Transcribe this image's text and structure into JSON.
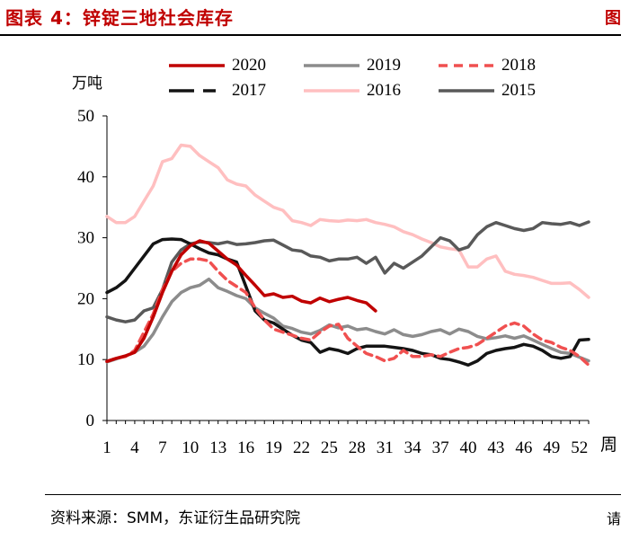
{
  "header": {
    "title": "图表 4：锌锭三地社会库存"
  },
  "footer": {
    "source": "资料来源：SMM，东证衍生品研究院"
  },
  "chart_data": {
    "type": "line",
    "ylabel": "万吨",
    "xlabel": "周",
    "ylim": [
      0,
      50
    ],
    "xlim": [
      1,
      53
    ],
    "y_ticks": [
      0,
      10,
      20,
      30,
      40,
      50
    ],
    "x_ticks": [
      1,
      4,
      7,
      10,
      13,
      16,
      19,
      22,
      25,
      28,
      31,
      34,
      37,
      40,
      43,
      46,
      49,
      52
    ],
    "legend_position": "top",
    "series": [
      {
        "name": "2020",
        "color": "#c00000",
        "dash": "solid",
        "width": 3.5,
        "x": [
          1,
          2,
          3,
          4,
          5,
          6,
          7,
          8,
          9,
          10,
          11,
          12,
          13,
          14,
          15,
          16,
          17,
          18,
          19,
          20,
          21,
          22,
          23,
          24,
          25,
          26,
          27,
          28,
          29,
          30
        ],
        "y": [
          9.7,
          10.2,
          10.6,
          11.2,
          13.5,
          17,
          21,
          24.5,
          27.2,
          28.7,
          29.5,
          29.1,
          27.8,
          26.5,
          25.5,
          23.8,
          22.2,
          20.5,
          20.8,
          20.2,
          20.4,
          19.6,
          19.3,
          20.1,
          19.5,
          19.9,
          20.2,
          19.7,
          19.3,
          18
        ]
      },
      {
        "name": "2019",
        "color": "#8c8c8c",
        "dash": "solid",
        "width": 3.5,
        "x": [
          1,
          2,
          3,
          4,
          5,
          6,
          7,
          8,
          9,
          10,
          11,
          12,
          13,
          14,
          15,
          16,
          17,
          18,
          19,
          20,
          21,
          22,
          23,
          24,
          25,
          26,
          27,
          28,
          29,
          30,
          31,
          32,
          33,
          34,
          35,
          36,
          37,
          38,
          39,
          40,
          41,
          42,
          43,
          44,
          45,
          46,
          47,
          48,
          49,
          50,
          51,
          52,
          53
        ],
        "y": [
          9.6,
          10.1,
          10.6,
          11.2,
          12.2,
          14.2,
          17,
          19.5,
          21,
          21.8,
          22.2,
          23.2,
          21.8,
          21.2,
          20.5,
          20,
          18.5,
          17.6,
          16.8,
          15.5,
          15.1,
          14.5,
          14.2,
          14.8,
          15.7,
          15.2,
          15.5,
          14.9,
          15.1,
          14.6,
          14.2,
          14.9,
          14.1,
          13.8,
          14.1,
          14.6,
          14.9,
          14.2,
          15,
          14.6,
          13.8,
          13.4,
          13.6,
          13.9,
          13.5,
          13.9,
          13.2,
          12.5,
          11.8,
          11.2,
          11,
          10.4,
          9.8
        ]
      },
      {
        "name": "2018",
        "color": "#f05050",
        "dash": "dashed",
        "width": 3.5,
        "x": [
          1,
          2,
          3,
          4,
          5,
          6,
          7,
          8,
          9,
          10,
          11,
          12,
          13,
          14,
          15,
          16,
          17,
          18,
          19,
          20,
          21,
          22,
          23,
          24,
          25,
          26,
          27,
          28,
          29,
          30,
          31,
          32,
          33,
          34,
          35,
          36,
          37,
          38,
          39,
          40,
          41,
          42,
          43,
          44,
          45,
          46,
          47,
          48,
          49,
          50,
          51,
          52,
          53
        ],
        "y": [
          9.7,
          10.2,
          10.5,
          11.5,
          14.5,
          17.5,
          21.5,
          24.5,
          25.8,
          26.5,
          26.5,
          26.2,
          24.5,
          23,
          22,
          21,
          18.5,
          16.5,
          15,
          14.5,
          14,
          13.5,
          13.2,
          14.5,
          15.5,
          15.8,
          13.5,
          12.2,
          11,
          10.5,
          9.8,
          10.2,
          11.5,
          10.5,
          10.5,
          10.8,
          10.5,
          11.2,
          11.8,
          12,
          12.5,
          13.5,
          14.5,
          15.5,
          16,
          15.5,
          14.2,
          13.2,
          12.8,
          12,
          11.5,
          10.5,
          9.1
        ]
      },
      {
        "name": "2017",
        "color": "#141414",
        "dash": "solid",
        "width": 3.5,
        "x": [
          1,
          2,
          3,
          4,
          5,
          6,
          7,
          8,
          9,
          10,
          11,
          12,
          13,
          14,
          15,
          16,
          17,
          18,
          19,
          20,
          21,
          22,
          23,
          24,
          25,
          26,
          27,
          28,
          29,
          30,
          31,
          32,
          33,
          34,
          35,
          36,
          37,
          38,
          39,
          40,
          41,
          42,
          43,
          44,
          45,
          46,
          47,
          48,
          49,
          50,
          51,
          52,
          53
        ],
        "y": [
          21,
          21.8,
          23,
          25,
          27,
          29,
          29.7,
          29.8,
          29.7,
          29,
          28.2,
          27.5,
          27.2,
          26.5,
          26,
          22,
          18,
          16.5,
          16,
          15,
          14,
          13.2,
          12.8,
          11.2,
          11.8,
          11.5,
          11,
          11.8,
          12.2,
          12.2,
          12.2,
          12,
          11.8,
          11.5,
          11,
          10.8,
          10.2,
          10,
          9.6,
          9.1,
          9.8,
          11,
          11.5,
          11.8,
          12,
          12.5,
          12.2,
          11.5,
          10.5,
          10.2,
          10.5,
          13.2,
          13.3
        ]
      },
      {
        "name": "2016",
        "color": "#ffbfc0",
        "dash": "solid",
        "width": 3.5,
        "x": [
          1,
          2,
          3,
          4,
          5,
          6,
          7,
          8,
          9,
          10,
          11,
          12,
          13,
          14,
          15,
          16,
          17,
          18,
          19,
          20,
          21,
          22,
          23,
          24,
          25,
          26,
          27,
          28,
          29,
          30,
          31,
          32,
          33,
          34,
          35,
          36,
          37,
          38,
          39,
          40,
          41,
          42,
          43,
          44,
          45,
          46,
          47,
          48,
          49,
          50,
          51,
          52,
          53
        ],
        "y": [
          33.5,
          32.5,
          32.5,
          33.5,
          36,
          38.5,
          42.5,
          43,
          45.2,
          45,
          43.5,
          42.5,
          41.5,
          39.5,
          38.8,
          38.5,
          37,
          36,
          35,
          34.5,
          32.8,
          32.5,
          32,
          33,
          32.8,
          32.7,
          32.9,
          32.8,
          33,
          32.5,
          32.2,
          31.8,
          31,
          30.5,
          29.8,
          29.2,
          28.5,
          28.2,
          28,
          25.2,
          25.2,
          26.5,
          27,
          24.5,
          24,
          23.8,
          23.5,
          23,
          22.5,
          22.5,
          22.6,
          21.5,
          20.2
        ]
      },
      {
        "name": "2015",
        "color": "#595959",
        "dash": "solid",
        "width": 3.5,
        "x": [
          1,
          2,
          3,
          4,
          5,
          6,
          7,
          8,
          9,
          10,
          11,
          12,
          13,
          14,
          15,
          16,
          17,
          18,
          19,
          20,
          21,
          22,
          23,
          24,
          25,
          26,
          27,
          28,
          29,
          30,
          31,
          32,
          33,
          34,
          35,
          36,
          37,
          38,
          39,
          40,
          41,
          42,
          43,
          44,
          45,
          46,
          47,
          48,
          49,
          50,
          51,
          52,
          53
        ],
        "y": [
          17,
          16.5,
          16.2,
          16.5,
          18,
          18.5,
          21.5,
          26,
          28,
          29,
          29.3,
          29.2,
          29,
          29.3,
          28.9,
          29,
          29.2,
          29.5,
          29.6,
          28.8,
          28,
          27.8,
          27,
          26.8,
          26.2,
          26.5,
          26.5,
          26.8,
          25.8,
          26.8,
          24.2,
          25.8,
          25,
          26,
          27,
          28.5,
          30,
          29.5,
          28,
          28.5,
          30.5,
          31.8,
          32.5,
          32,
          31.5,
          31.2,
          31.5,
          32.5,
          32.3,
          32.2,
          32.5,
          32,
          32.6
        ]
      }
    ]
  }
}
